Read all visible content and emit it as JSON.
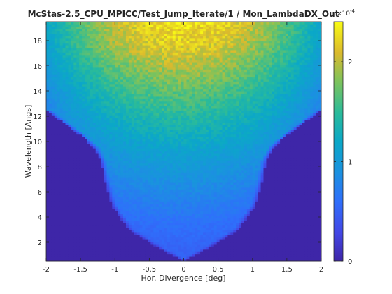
{
  "chart_data": {
    "type": "heatmap",
    "title": "McStas-2.5_CPU_MPICC/Test_Jump_Iterate/1 / Mon_LambdaDX_Out",
    "xlabel": "Hor. Divergence [deg]",
    "ylabel": "Wavelength [Angs]",
    "xlim": [
      -2,
      2
    ],
    "ylim": [
      0.5,
      19.5
    ],
    "x_ticks": [
      -2,
      -1.5,
      -1,
      -0.5,
      0,
      0.5,
      1,
      1.5,
      2
    ],
    "x_tick_labels": [
      "-2",
      "-1.5",
      "-1",
      "-0.5",
      "0",
      "0.5",
      "1",
      "1.5",
      "2"
    ],
    "y_ticks": [
      2,
      4,
      6,
      8,
      10,
      12,
      14,
      16,
      18
    ],
    "y_tick_labels": [
      "2",
      "4",
      "6",
      "8",
      "10",
      "12",
      "14",
      "16",
      "18"
    ],
    "colorbar": {
      "colormap": "parula",
      "range": [
        0,
        0.00024
      ],
      "ticks": [
        0,
        0.0001,
        0.0002
      ],
      "tick_labels": [
        "0",
        "1",
        "2"
      ],
      "exponent_label": "×10",
      "exponent_power": "-4"
    },
    "grid": false,
    "description_of_distribution": {
      "background_level": 0,
      "edge_boundary": [
        {
          "lambda": 1.5,
          "half_width": 0.35
        },
        {
          "lambda": 3,
          "half_width": 0.8
        },
        {
          "lambda": 5,
          "half_width": 1.05
        },
        {
          "lambda": 7,
          "half_width": 1.15
        },
        {
          "lambda": 8.5,
          "half_width": 1.2
        },
        {
          "lambda": 9.5,
          "half_width": 1.3
        },
        {
          "lambda": 10.5,
          "half_width": 1.5
        },
        {
          "lambda": 11.5,
          "half_width": 1.75
        },
        {
          "lambda": 12.5,
          "half_width": 2.0
        }
      ],
      "peak": {
        "x": 0,
        "lambda": 17.5,
        "value": 0.00023
      }
    }
  },
  "colors": {
    "background_bin": "#3e26a8",
    "axis": "#262626"
  }
}
